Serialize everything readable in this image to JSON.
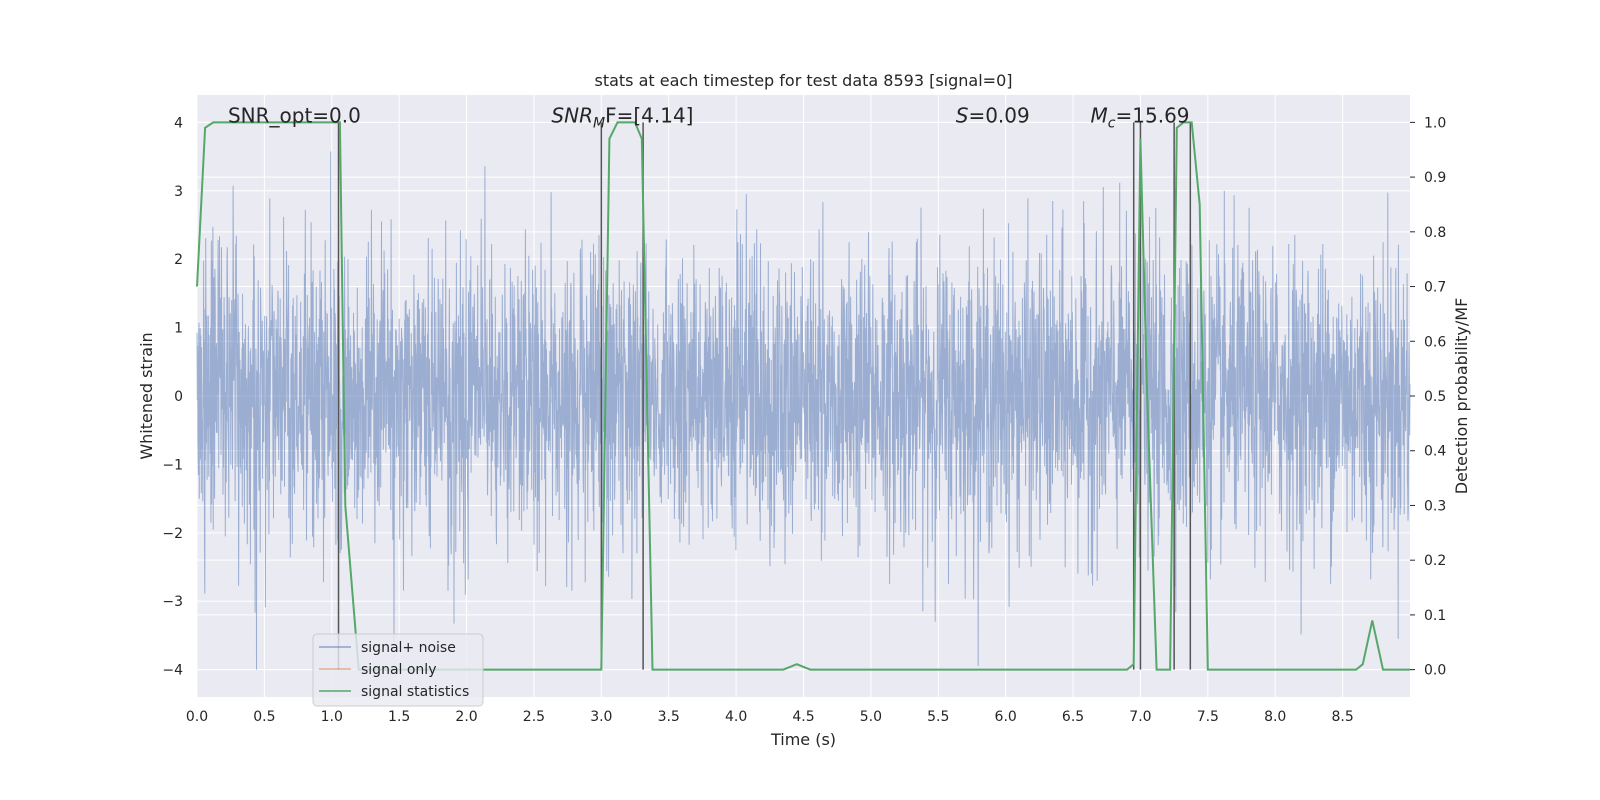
{
  "chart_data": {
    "type": "line",
    "title": "stats at each timestep for test data 8593 [signal=0]",
    "xlabel": "Time (s)",
    "ylabel_left": "Whitened strain",
    "ylabel_right": "Detection probability/MF",
    "xlim": [
      0,
      9
    ],
    "ylim_left": [
      -4.4,
      4.4
    ],
    "ylim_right": [
      -0.05,
      1.05
    ],
    "x_ticks": [
      "0.0",
      "0.5",
      "1.0",
      "1.5",
      "2.0",
      "2.5",
      "3.0",
      "3.5",
      "4.0",
      "4.5",
      "5.0",
      "5.5",
      "6.0",
      "6.5",
      "7.0",
      "7.5",
      "8.0",
      "8.5"
    ],
    "y_left_ticks": [
      "−4",
      "−3",
      "−2",
      "−1",
      "0",
      "1",
      "2",
      "3",
      "4"
    ],
    "y_right_ticks": [
      "0.0",
      "0.1",
      "0.2",
      "0.3",
      "0.4",
      "0.5",
      "0.6",
      "0.7",
      "0.8",
      "0.9",
      "1.0"
    ],
    "grid": true,
    "legend_position": "lower-left",
    "series": [
      {
        "name": "signal+ noise",
        "color": "#4c72b0",
        "axis": "left",
        "description_values": "noise-like whitened strain, amplitude approx between -4 and 4"
      },
      {
        "name": "signal only",
        "color": "#dd8452",
        "axis": "left",
        "values": []
      },
      {
        "name": "signal statistics",
        "color": "#55a868",
        "axis": "right",
        "x": [
          0.0,
          0.06,
          0.12,
          0.5,
          1.0,
          1.06,
          1.1,
          1.2,
          1.3,
          2.0,
          3.0,
          3.06,
          3.12,
          3.25,
          3.3,
          3.38,
          3.5,
          4.0,
          4.35,
          4.45,
          4.55,
          5.0,
          6.0,
          6.9,
          6.95,
          7.0,
          7.05,
          7.12,
          7.22,
          7.27,
          7.32,
          7.38,
          7.44,
          7.5,
          8.0,
          8.6,
          8.65,
          8.72,
          8.8,
          9.0
        ],
        "values": [
          0.7,
          0.99,
          1.0,
          1.0,
          1.0,
          1.0,
          0.3,
          0.0,
          0.0,
          0.0,
          0.0,
          0.97,
          1.0,
          1.0,
          0.97,
          0.0,
          0.0,
          0.0,
          0.0,
          0.01,
          0.0,
          0.0,
          0.0,
          0.0,
          0.01,
          0.97,
          0.5,
          0.0,
          0.0,
          0.99,
          1.0,
          1.0,
          0.85,
          0.0,
          0.0,
          0.0,
          0.01,
          0.09,
          0.0,
          0.0
        ]
      }
    ],
    "vertical_lines_x": [
      1.05,
      3.0,
      3.31,
      6.95,
      7.0,
      7.25,
      7.37
    ],
    "annotations": [
      {
        "text": "SNR_opt=0.0",
        "x": 0.2,
        "y": 4.0
      },
      {
        "text_main": "SNR",
        "text_sub": "M",
        "text_rest": "F=[4.14]",
        "x": 2.6,
        "y": 4.0
      },
      {
        "text_main": "S",
        "text_rest": "=0.09",
        "x": 5.6,
        "y": 4.0
      },
      {
        "text_main": "M",
        "text_sub": "c",
        "text_rest": "=15.69",
        "x": 6.6,
        "y": 4.0
      }
    ]
  }
}
